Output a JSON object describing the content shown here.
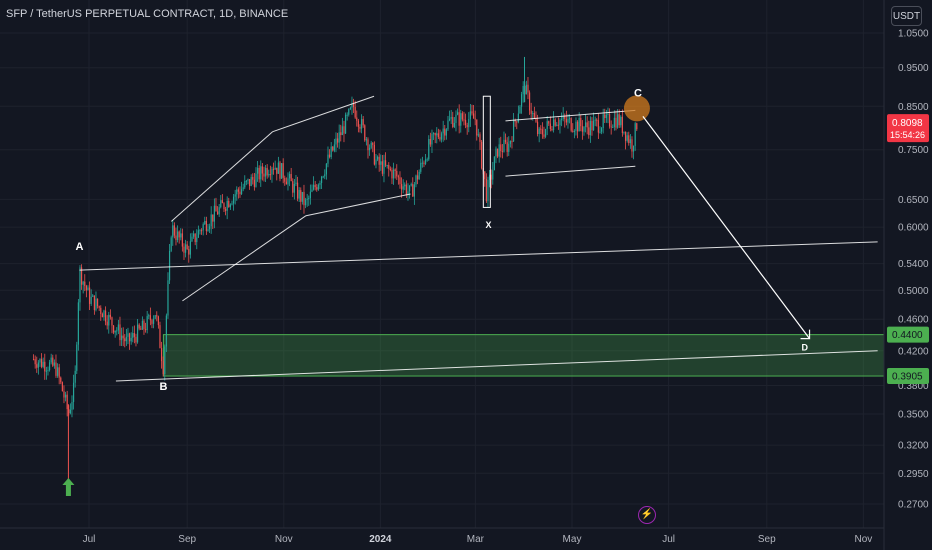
{
  "header": {
    "title": "SFP / TetherUS PERPETUAL CONTRACT, 1D, BINANCE",
    "currency_button": "USDT"
  },
  "price_label": {
    "value": "0.8098",
    "countdown": "15:54:26"
  },
  "zone_labels": {
    "upper": "0.4400",
    "lower": "0.3905"
  },
  "colors": {
    "background": "#131722",
    "bull": "#26a69a",
    "bear": "#ef5350",
    "zone": "#4caf50",
    "annotation": "#ffffff",
    "target_circle": "#d27b1e",
    "price_tag": "#f23645"
  },
  "chart_data": {
    "type": "candlestick",
    "symbol": "SFP / TetherUS PERPETUAL CONTRACT",
    "timeframe": "1D",
    "exchange": "BINANCE",
    "y_scale": "log",
    "ylim": [
      0.26,
      1.06
    ],
    "y_ticks": [
      "1.0500",
      "0.9500",
      "0.8500",
      "0.7500",
      "0.6500",
      "0.6000",
      "0.5400",
      "0.5000",
      "0.4600",
      "0.4200",
      "0.3800",
      "0.3500",
      "0.3200",
      "0.2950",
      "0.2700"
    ],
    "x_ticks": [
      "Jul",
      "Sep",
      "Nov",
      "2024",
      "Mar",
      "May",
      "Jul",
      "Sep",
      "Nov"
    ],
    "price_path": [
      {
        "x": "2023-05-27",
        "y": 0.41
      },
      {
        "x": "2023-06-10",
        "y": 0.4
      },
      {
        "x": "2023-06-15",
        "y": 0.37
      },
      {
        "x": "2023-06-18",
        "y": 0.35
      },
      {
        "x": "2023-06-22",
        "y": 0.38
      },
      {
        "x": "2023-06-25",
        "y": 0.53
      },
      {
        "x": "2023-07-01",
        "y": 0.49
      },
      {
        "x": "2023-07-10",
        "y": 0.47
      },
      {
        "x": "2023-07-25",
        "y": 0.43
      },
      {
        "x": "2023-08-05",
        "y": 0.45
      },
      {
        "x": "2023-08-12",
        "y": 0.47
      },
      {
        "x": "2023-08-17",
        "y": 0.4
      },
      {
        "x": "2023-08-22",
        "y": 0.6
      },
      {
        "x": "2023-09-01",
        "y": 0.56
      },
      {
        "x": "2023-09-10",
        "y": 0.6
      },
      {
        "x": "2023-10-01",
        "y": 0.66
      },
      {
        "x": "2023-10-25",
        "y": 0.72
      },
      {
        "x": "2023-11-01",
        "y": 0.7
      },
      {
        "x": "2023-11-15",
        "y": 0.64
      },
      {
        "x": "2023-11-25",
        "y": 0.7
      },
      {
        "x": "2023-12-15",
        "y": 0.85
      },
      {
        "x": "2023-12-30",
        "y": 0.72
      },
      {
        "x": "2024-01-10",
        "y": 0.7
      },
      {
        "x": "2024-01-20",
        "y": 0.66
      },
      {
        "x": "2024-02-01",
        "y": 0.76
      },
      {
        "x": "2024-02-15",
        "y": 0.82
      },
      {
        "x": "2024-03-01",
        "y": 0.82
      },
      {
        "x": "2024-03-08",
        "y": 0.66
      },
      {
        "x": "2024-03-15",
        "y": 0.75
      },
      {
        "x": "2024-03-22",
        "y": 0.76
      },
      {
        "x": "2024-04-01",
        "y": 0.9
      },
      {
        "x": "2024-04-10",
        "y": 0.78
      },
      {
        "x": "2024-04-20",
        "y": 0.82
      },
      {
        "x": "2024-05-10",
        "y": 0.8
      },
      {
        "x": "2024-05-30",
        "y": 0.82
      },
      {
        "x": "2024-06-05",
        "y": 0.78
      },
      {
        "x": "2024-06-08",
        "y": 0.76
      },
      {
        "x": "2024-06-11",
        "y": 0.8098
      }
    ],
    "demand_zone": [
      0.3905,
      0.44
    ],
    "last_price": 0.8098,
    "annotations": [
      {
        "label": "A",
        "x": "2023-06-25",
        "y": 0.53
      },
      {
        "label": "B",
        "x": "2023-08-17",
        "y": 0.395
      },
      {
        "label": "X",
        "x": "2024-03-08",
        "y": 0.63
      },
      {
        "label": "C",
        "x": "2024-06-11",
        "y": 0.84
      },
      {
        "label": "D",
        "x": "2024-09-25",
        "y": 0.44
      }
    ]
  }
}
